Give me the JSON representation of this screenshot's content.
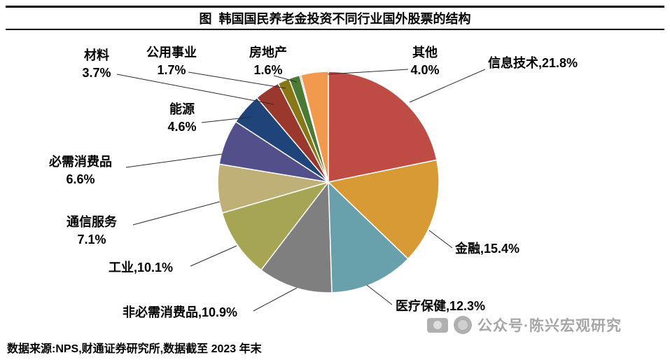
{
  "title": "图  韩国国民养老金投资不同行业国外股票的结构",
  "footer": {
    "source_text": "数据来源:NPS,财通证券研究所,数据截至 2023 年末"
  },
  "watermark": {
    "text": "公众号·陈兴宏观研究"
  },
  "chart_data": {
    "type": "pie",
    "title": "韩国国民养老金投资不同行业国外股票的结构",
    "unit": "%",
    "legend_position": "none",
    "label_style": "callout",
    "direction": "clockwise",
    "start_angle_deg": 0,
    "slices": [
      {
        "label": "信息技术",
        "value": 21.8,
        "color": "#BE4C44"
      },
      {
        "label": "金融",
        "value": 15.4,
        "color": "#D79A34"
      },
      {
        "label": "医疗保健",
        "value": 12.3,
        "color": "#68A0AC"
      },
      {
        "label": "非必需消费品",
        "value": 10.9,
        "color": "#7F7F7F"
      },
      {
        "label": "工业",
        "value": 10.1,
        "color": "#A6A553"
      },
      {
        "label": "通信服务",
        "value": 7.1,
        "color": "#BFB078"
      },
      {
        "label": "必需消费品",
        "value": 6.6,
        "color": "#524F8B"
      },
      {
        "label": "能源",
        "value": 4.6,
        "color": "#1F4479"
      },
      {
        "label": "材料",
        "value": 3.7,
        "color": "#9A382E"
      },
      {
        "label": "公用事业",
        "value": 1.7,
        "color": "#887815"
      },
      {
        "label": "房地产",
        "value": 1.6,
        "color": "#4B7A34"
      },
      {
        "label": "",
        "value": 0.2,
        "color": "#1C6E74"
      },
      {
        "label": "其他",
        "value": 4.0,
        "color": "#F19A4D"
      }
    ]
  }
}
